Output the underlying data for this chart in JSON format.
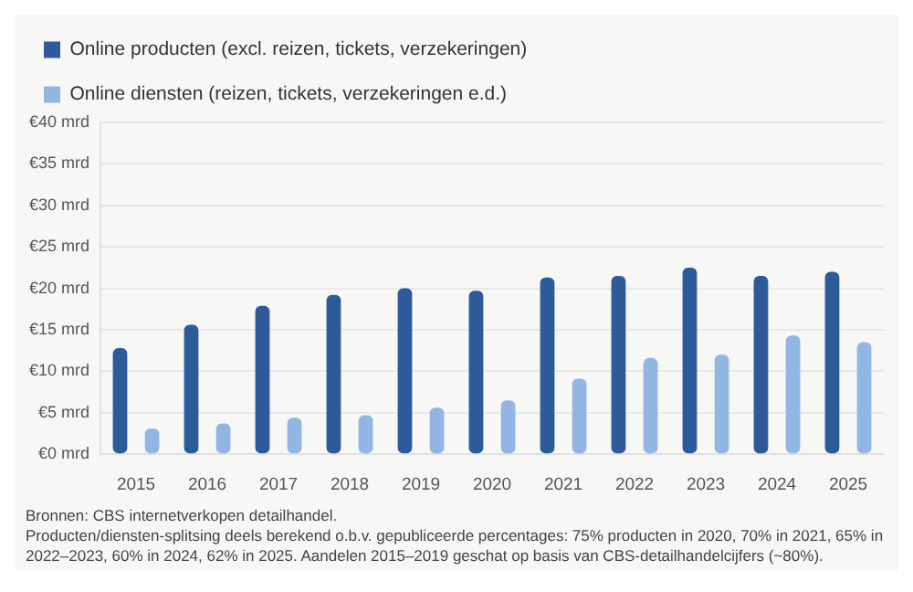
{
  "chart_data": {
    "type": "bar",
    "categories": [
      "2015",
      "2016",
      "2017",
      "2018",
      "2019",
      "2020",
      "2021",
      "2022",
      "2023",
      "2024",
      "2025"
    ],
    "series": [
      {
        "name": "Online producten (excl. reizen, tickets, verzekeringen)",
        "color": "#2d5b9a",
        "values": [
          12.8,
          15.6,
          17.9,
          19.2,
          20.0,
          19.7,
          21.3,
          21.5,
          22.5,
          21.5,
          22.0
        ]
      },
      {
        "name": "Online diensten (reizen, tickets, verzekeringen e.d.)",
        "color": "#92b6e4",
        "values": [
          3.1,
          3.7,
          4.4,
          4.7,
          5.6,
          6.5,
          9.1,
          11.6,
          12.0,
          14.3,
          13.5
        ]
      }
    ],
    "ylim": [
      0,
      40
    ],
    "yticks": [
      {
        "value": 0,
        "label": "€0 mrd"
      },
      {
        "value": 5,
        "label": "€5 mrd"
      },
      {
        "value": 10,
        "label": "€10 mrd"
      },
      {
        "value": 15,
        "label": "€15 mrd"
      },
      {
        "value": 20,
        "label": "€20 mrd"
      },
      {
        "value": 25,
        "label": "€25 mrd"
      },
      {
        "value": 30,
        "label": "€30 mrd"
      },
      {
        "value": 35,
        "label": "€35 mrd"
      },
      {
        "value": 40,
        "label": "€40 mrd"
      }
    ],
    "grid": "y",
    "legend": "top left",
    "annotations": [
      "Bronnen: CBS internetverkopen detailhandel.",
      "Producten/diensten-splitsing deels berekend o.b.v. gepubliceerde percentages: 75% producten in 2020, 70% in 2021, 65% in 2022–2023, 60% in 2024, 62% in 2025. Aandelen 2015–2019 geschat op basis van CBS-detailhandelcijfers (~80%)."
    ]
  }
}
